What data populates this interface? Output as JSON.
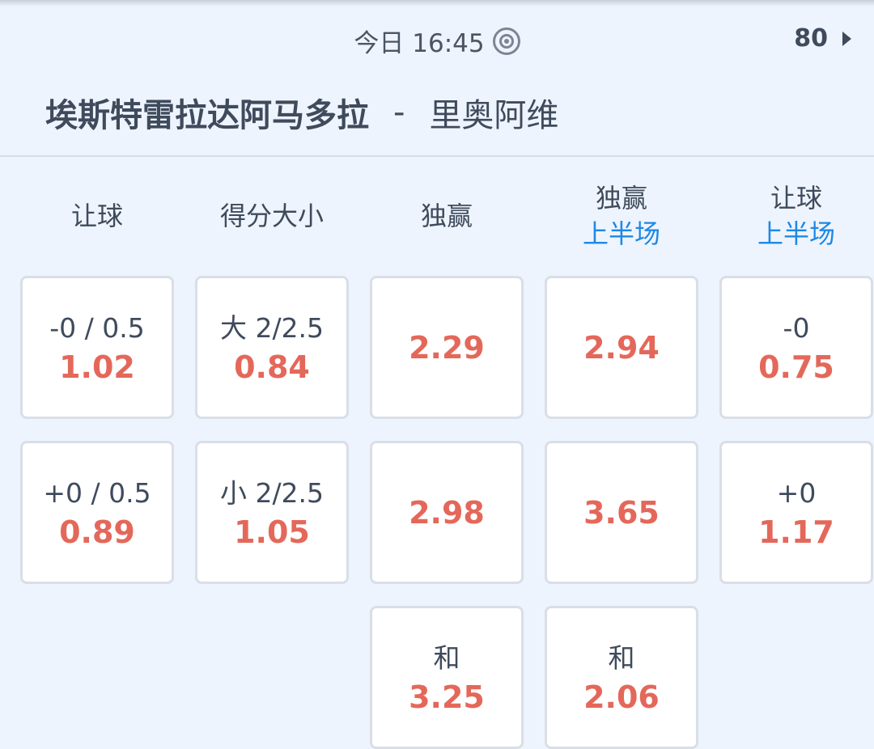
{
  "header": {
    "time": "今日 16:45",
    "minute": "80",
    "home_team": "埃斯特雷拉达阿马多拉",
    "separator": "-",
    "away_team": "里奥阿维"
  },
  "columns": [
    {
      "title": "让球",
      "subtitle": ""
    },
    {
      "title": "得分大小",
      "subtitle": ""
    },
    {
      "title": "独赢",
      "subtitle": ""
    },
    {
      "title": "独赢",
      "subtitle": "上半场"
    },
    {
      "title": "让球",
      "subtitle": "上半场"
    }
  ],
  "rows": [
    [
      {
        "label": "-0 / 0.5",
        "odds": "1.02"
      },
      {
        "label": "大 2/2.5",
        "odds": "0.84"
      },
      {
        "label": "",
        "odds": "2.29"
      },
      {
        "label": "",
        "odds": "2.94"
      },
      {
        "label": "-0",
        "odds": "0.75"
      }
    ],
    [
      {
        "label": "+0 / 0.5",
        "odds": "0.89"
      },
      {
        "label": "小 2/2.5",
        "odds": "1.05"
      },
      {
        "label": "",
        "odds": "2.98"
      },
      {
        "label": "",
        "odds": "3.65"
      },
      {
        "label": "+0",
        "odds": "1.17"
      }
    ],
    [
      null,
      null,
      {
        "label": "和",
        "odds": "3.25"
      },
      {
        "label": "和",
        "odds": "2.06"
      },
      null
    ]
  ],
  "colors": {
    "odds": "#e4685a",
    "subtitle": "#1e88e5",
    "background": "#eef4fd"
  }
}
